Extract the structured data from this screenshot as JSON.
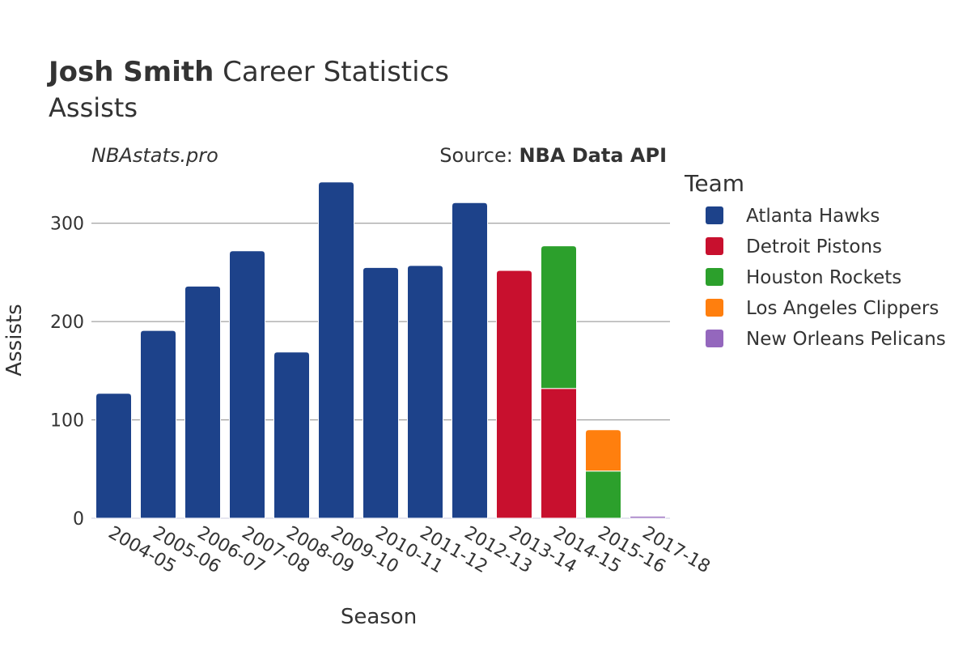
{
  "header": {
    "title_bold": "Josh Smith",
    "title_rest": " Career Statistics",
    "subtitle": "Assists",
    "watermark": "NBAstats.pro",
    "source_prefix": "Source: ",
    "source_name": "NBA Data API"
  },
  "legend": {
    "title": "Team"
  },
  "chart_data": {
    "type": "bar",
    "stacked": true,
    "xlabel": "Season",
    "ylabel": "Assists",
    "ylim": [
      0,
      350
    ],
    "yticks": [
      0,
      100,
      200,
      300
    ],
    "grid": true,
    "legend_position": "right",
    "categories": [
      "2004-05",
      "2005-06",
      "2006-07",
      "2007-08",
      "2008-09",
      "2009-10",
      "2010-11",
      "2011-12",
      "2012-13",
      "2013-14",
      "2014-15",
      "2015-16",
      "2017-18"
    ],
    "series": [
      {
        "name": "Atlanta Hawks",
        "color": "#1d428a",
        "values": [
          127,
          191,
          236,
          272,
          169,
          342,
          255,
          257,
          321,
          0,
          0,
          0,
          0
        ]
      },
      {
        "name": "Detroit Pistons",
        "color": "#c8102e",
        "values": [
          0,
          0,
          0,
          0,
          0,
          0,
          0,
          0,
          0,
          252,
          132,
          0,
          0
        ]
      },
      {
        "name": "Houston Rockets",
        "color": "#2ca02c",
        "values": [
          0,
          0,
          0,
          0,
          0,
          0,
          0,
          0,
          0,
          0,
          145,
          48,
          0
        ]
      },
      {
        "name": "Los Angeles Clippers",
        "color": "#ff7f0e",
        "values": [
          0,
          0,
          0,
          0,
          0,
          0,
          0,
          0,
          0,
          0,
          0,
          42,
          0
        ]
      },
      {
        "name": "New Orleans Pelicans",
        "color": "#9467bd",
        "values": [
          0,
          0,
          0,
          0,
          0,
          0,
          0,
          0,
          0,
          0,
          0,
          0,
          2
        ]
      }
    ]
  }
}
